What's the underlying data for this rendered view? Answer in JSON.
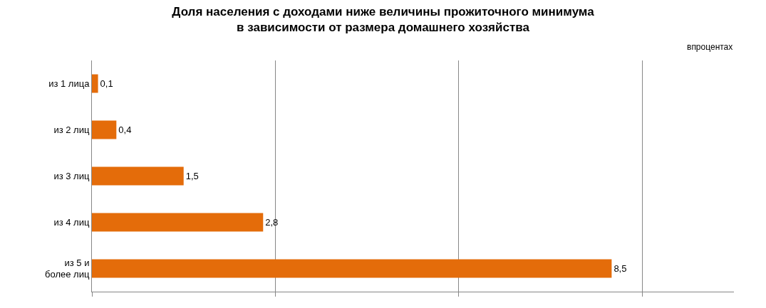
{
  "chart_data": {
    "type": "bar",
    "orientation": "horizontal",
    "title": "Доля населения с доходами ниже величины прожиточного минимума\nв зависимости от размера домашнего хозяйства",
    "annotations": [
      "впроцентах"
    ],
    "categories": [
      "из 1 лица",
      "из 2 лиц",
      "из 3 лиц",
      "из 4 лиц",
      "из 5 и более лиц"
    ],
    "values": [
      0.1,
      0.4,
      1.5,
      2.8,
      8.5
    ],
    "value_labels": [
      "0,1",
      "0,4",
      "1,5",
      "2,8",
      "8,5"
    ],
    "color": "#e46c0a",
    "xlim": [
      0,
      10.5
    ],
    "xticks": [
      {
        "value": 0,
        "label": null
      },
      {
        "value": 3,
        "label": null
      },
      {
        "value": 6,
        "label": null
      },
      {
        "value": 9,
        "label": null
      }
    ],
    "grid": "x",
    "tick_labels": "y"
  }
}
